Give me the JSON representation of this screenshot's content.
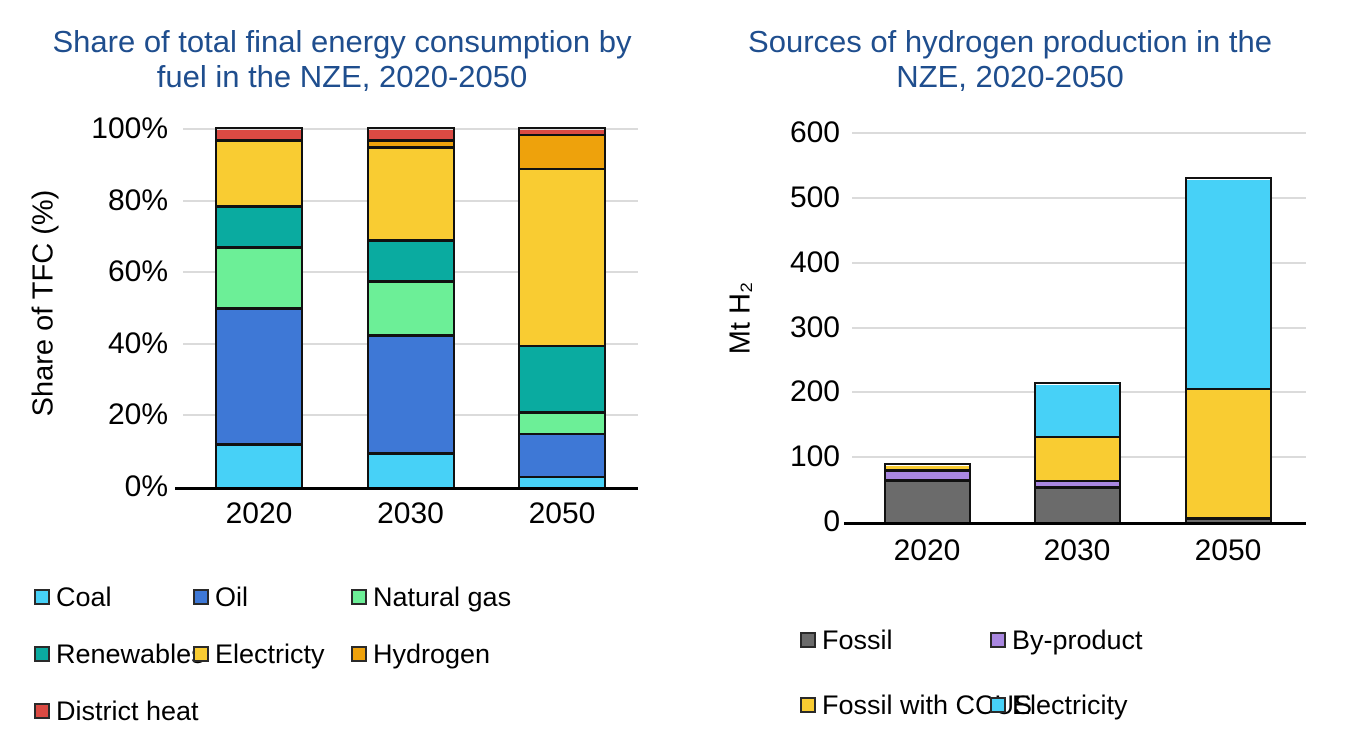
{
  "page": {
    "background": "#FFFFFF",
    "text_color": "#000000",
    "gridline_color": "#DBDBDB",
    "bar_border_color": "#111111",
    "title_color": "#1F4E8E"
  },
  "chart_data": [
    {
      "type": "bar",
      "stacked": true,
      "title": "Share of total final energy consumption by fuel in the NZE, 2020-2050",
      "title_lines": [
        "Share of total final energy consumption by",
        "fuel in the NZE, 2020-2050"
      ],
      "xlabel": "",
      "ylabel": "Share of TFC (%)",
      "ylim": [
        0,
        100
      ],
      "yticks": [
        0,
        20,
        40,
        60,
        80,
        100
      ],
      "ytick_suffix": "%",
      "grid": true,
      "legend_position": "bottom",
      "legend_columns": 3,
      "categories": [
        "2020",
        "2030",
        "2050"
      ],
      "series": [
        {
          "name": "Coal",
          "color": "#47D1F7",
          "values": [
            12,
            9.5,
            3
          ]
        },
        {
          "name": "Oil",
          "color": "#3E78D6",
          "values": [
            38,
            33,
            12
          ]
        },
        {
          "name": "Natural gas",
          "color": "#6CEF97",
          "values": [
            17,
            15,
            6
          ]
        },
        {
          "name": "Renewables",
          "color": "#0AABA0",
          "values": [
            11.5,
            11.5,
            18.5
          ]
        },
        {
          "name": "Electricty",
          "color": "#F9CC32",
          "values": [
            18.5,
            26,
            49.5
          ]
        },
        {
          "name": "Hydrogen",
          "color": "#EEA20C",
          "values": [
            0,
            2,
            9.5
          ]
        },
        {
          "name": "District heat",
          "color": "#DB4A43",
          "values": [
            3,
            3,
            1.5
          ]
        }
      ]
    },
    {
      "type": "bar",
      "stacked": true,
      "title": "Sources of hydrogen production in the NZE, 2020-2050",
      "title_lines": [
        "Sources of hydrogen production in the",
        "NZE, 2020-2050"
      ],
      "xlabel": "",
      "ylabel": "Mt H₂",
      "ylim": [
        0,
        600
      ],
      "yticks": [
        0,
        100,
        200,
        300,
        400,
        500,
        600
      ],
      "ytick_suffix": "",
      "grid": true,
      "legend_position": "bottom",
      "legend_columns": 2,
      "categories": [
        "2020",
        "2030",
        "2050"
      ],
      "series": [
        {
          "name": "Fossil",
          "color": "#6B6B6B",
          "values": [
            65,
            54,
            6
          ]
        },
        {
          "name": "By-product",
          "color": "#A987E0",
          "values": [
            15,
            10,
            0
          ]
        },
        {
          "name": "Fossil with CCUS",
          "color": "#F9CC32",
          "values": [
            7,
            68,
            200
          ]
        },
        {
          "name": "Electricity",
          "color": "#47D1F7",
          "values": [
            0,
            80,
            322
          ]
        }
      ]
    }
  ]
}
